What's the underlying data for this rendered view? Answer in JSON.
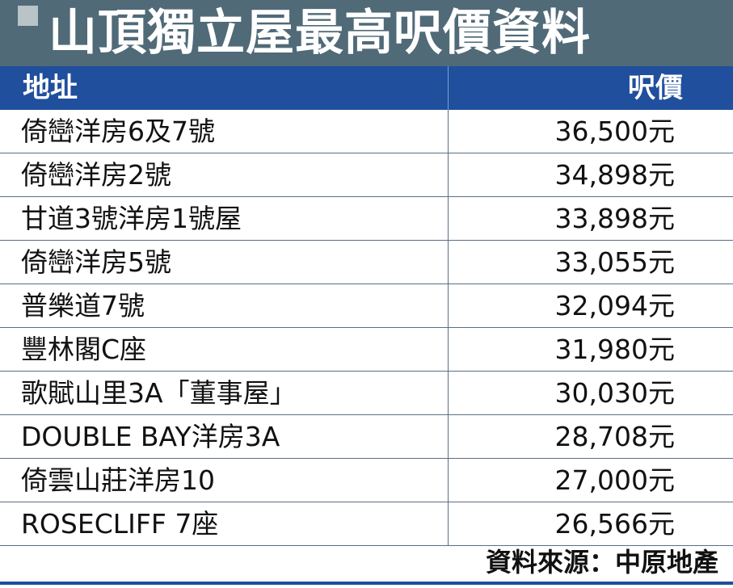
{
  "title": "山頂獨立屋最高呎價資料",
  "headers": {
    "address": "地址",
    "price": "呎價"
  },
  "rows": [
    {
      "address": "倚巒洋房6及7號",
      "price": "36,500元"
    },
    {
      "address": "倚巒洋房2號",
      "price": "34,898元"
    },
    {
      "address": "甘道3號洋房1號屋",
      "price": "33,898元"
    },
    {
      "address": "倚巒洋房5號",
      "price": "33,055元"
    },
    {
      "address": "普樂道7號",
      "price": "32,094元"
    },
    {
      "address": "豐林閣C座",
      "price": "31,980元"
    },
    {
      "address": "歌賦山里3A「董事屋」",
      "price": "30,030元"
    },
    {
      "address": "DOUBLE BAY洋房3A",
      "price": "28,708元"
    },
    {
      "address": "倚雲山莊洋房10",
      "price": "27,000元"
    },
    {
      "address": "ROSECLIFF  7座",
      "price": "26,566元"
    }
  ],
  "source": "資料來源：中原地產",
  "colors": {
    "title_bg": "#506a78",
    "header_bg": "#1f4f9d",
    "line": "#5a6e85"
  }
}
